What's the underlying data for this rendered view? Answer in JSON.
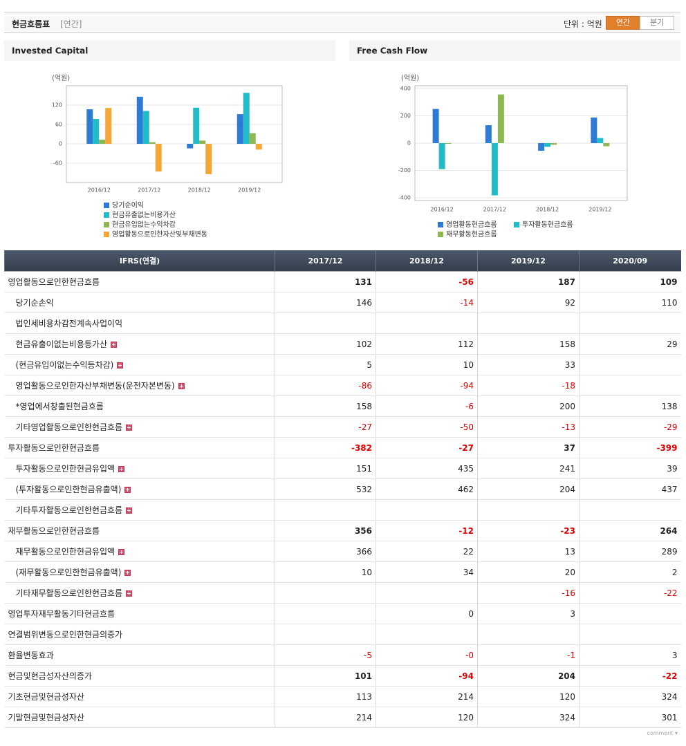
{
  "header": {
    "title": "현금흐름표",
    "period": "[연간]",
    "unit": "단위 : 억원",
    "tabs": [
      "연간",
      "분기"
    ],
    "active_tab": 0
  },
  "chart_data": [
    {
      "type": "bar",
      "title": "Invested Capital",
      "unit_label": "(억원)",
      "categories": [
        "2016/12",
        "2017/12",
        "2018/12",
        "2019/12"
      ],
      "series": [
        {
          "name": "당기순이익",
          "color": "#2e7bd6",
          "values": [
            107,
            146,
            -14,
            92
          ]
        },
        {
          "name": "현금유출없는비용가산",
          "color": "#22bcc8",
          "values": [
            77,
            102,
            112,
            158
          ]
        },
        {
          "name": "현금유입없는수익차감",
          "color": "#8db851",
          "values": [
            13,
            5,
            10,
            33
          ]
        },
        {
          "name": "영업활동으로인한자산및부채변동",
          "color": "#f5a636",
          "values": [
            111,
            -86,
            -94,
            -18
          ]
        }
      ],
      "ylim": [
        -120,
        180
      ],
      "yticks": [
        120,
        60,
        0,
        -60
      ],
      "grid": true
    },
    {
      "type": "bar",
      "title": "Free Cash Flow",
      "unit_label": "(억원)",
      "categories": [
        "2016/12",
        "2017/12",
        "2018/12",
        "2019/12"
      ],
      "series": [
        {
          "name": "영업활동현금흐름",
          "color": "#2e7bd6",
          "values": [
            250,
            131,
            -56,
            187
          ]
        },
        {
          "name": "투자활동현금흐름",
          "color": "#22bcc8",
          "values": [
            -190,
            -382,
            -27,
            37
          ]
        },
        {
          "name": "재무활동현금흐름",
          "color": "#8db851",
          "values": [
            -5,
            356,
            -12,
            -23
          ]
        }
      ],
      "ylim": [
        -420,
        420
      ],
      "yticks": [
        400,
        200,
        0,
        -200,
        -400
      ],
      "grid": true
    }
  ],
  "table": {
    "columns": [
      "IFRS(연결)",
      "2017/12",
      "2018/12",
      "2019/12",
      "2020/09"
    ],
    "rows": [
      {
        "label": "영업활동으로인한현금흐름",
        "values": [
          "131",
          "-56",
          "187",
          "109"
        ],
        "bold": true,
        "children": [
          {
            "label": "당기순손익",
            "values": [
              "146",
              "-14",
              "92",
              "110"
            ]
          },
          {
            "label": "법인세비용차감전계속사업이익",
            "values": [
              null,
              null,
              null,
              null
            ]
          },
          {
            "label": "현금유출이없는비용등가산",
            "values": [
              "102",
              "112",
              "158",
              "29"
            ],
            "expandable": true
          },
          {
            "label": "(현금유입이없는수익등차감)",
            "values": [
              "5",
              "10",
              "33",
              null
            ],
            "expandable": true
          },
          {
            "label": "영업활동으로인한자산부채변동(운전자본변동)",
            "values": [
              "-86",
              "-94",
              "-18",
              null
            ],
            "expandable": true
          },
          {
            "label": "*영업에서창출된현금흐름",
            "values": [
              "158",
              "-6",
              "200",
              "138"
            ]
          },
          {
            "label": "기타영업활동으로인한현금흐름",
            "values": [
              "-27",
              "-50",
              "-13",
              "-29"
            ],
            "expandable": true
          }
        ]
      },
      {
        "label": "투자활동으로인한현금흐름",
        "values": [
          "-382",
          "-27",
          "37",
          "-399"
        ],
        "bold": true,
        "children": [
          {
            "label": "투자활동으로인한현금유입액",
            "values": [
              "151",
              "435",
              "241",
              "39"
            ],
            "expandable": true
          },
          {
            "label": "(투자활동으로인한현금유출액)",
            "values": [
              "532",
              "462",
              "204",
              "437"
            ],
            "expandable": true
          },
          {
            "label": "기타투자활동으로인한현금흐름",
            "values": [
              null,
              null,
              null,
              null
            ],
            "expandable": true
          }
        ]
      },
      {
        "label": "재무활동으로인한현금흐름",
        "values": [
          "356",
          "-12",
          "-23",
          "264"
        ],
        "bold": true,
        "children": [
          {
            "label": "재무활동으로인한현금유입액",
            "values": [
              "366",
              "22",
              "13",
              "289"
            ],
            "expandable": true
          },
          {
            "label": "(재무활동으로인한현금유출액)",
            "values": [
              "10",
              "34",
              "20",
              "2"
            ],
            "expandable": true
          },
          {
            "label": "기타재무활동으로인한현금흐름",
            "values": [
              null,
              null,
              "-16",
              "-22"
            ],
            "expandable": true
          }
        ]
      },
      {
        "label": "영업투자재무활동기타현금흐름",
        "values": [
          null,
          "0",
          "3",
          null
        ]
      },
      {
        "label": "연결범위변동으로인한현금의증가",
        "values": [
          null,
          null,
          null,
          null
        ]
      },
      {
        "label": "환율변동효과",
        "values": [
          "-5",
          "-0",
          "-1",
          "3"
        ]
      },
      {
        "label": "현금및현금성자산의증가",
        "values": [
          "101",
          "-94",
          "204",
          "-22"
        ],
        "bold": true
      },
      {
        "label": "기초현금및현금성자산",
        "values": [
          "113",
          "214",
          "120",
          "324"
        ]
      },
      {
        "label": "기말현금및현금성자산",
        "values": [
          "214",
          "120",
          "324",
          "301"
        ]
      }
    ]
  },
  "footer": "comment"
}
